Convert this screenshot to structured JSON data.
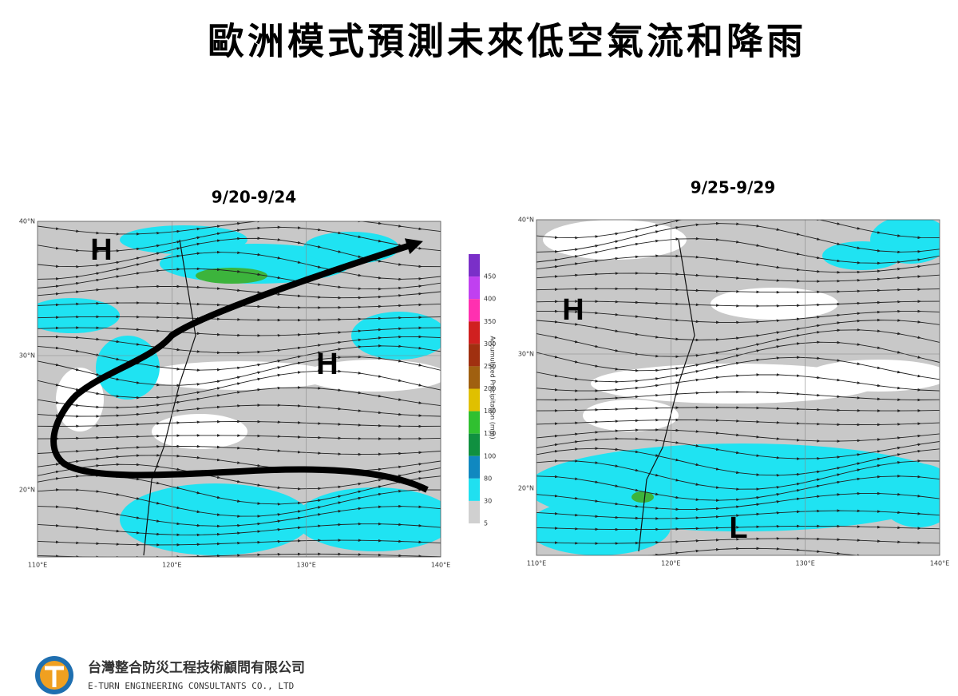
{
  "title": "歐洲模式預測未來低空氣流和降雨",
  "panels": [
    {
      "date": "9/20-9/24",
      "lat_labels": [
        "40°N",
        "30°N",
        "20°N"
      ],
      "lon_labels": [
        "110°E",
        "120°E",
        "130°E",
        "140°E"
      ],
      "systems": [
        "H",
        "H"
      ]
    },
    {
      "date": "9/25-9/29",
      "lat_labels": [
        "40°N",
        "30°N",
        "20°N"
      ],
      "lon_labels": [
        "110°E",
        "120°E",
        "130°E",
        "140°E"
      ],
      "systems": [
        "H",
        "L"
      ]
    }
  ],
  "colorbar": {
    "title": "Accumulated Precipitation (mm)",
    "labels": [
      "450",
      "400",
      "350",
      "300",
      "250",
      "200",
      "180",
      "130",
      "100",
      "80",
      "30",
      "5"
    ]
  },
  "footer": {
    "company_zh": "台灣整合防災工程技術顧問有限公司",
    "company_en": "E-TURN ENGINEERING CONSULTANTS CO., LTD"
  }
}
